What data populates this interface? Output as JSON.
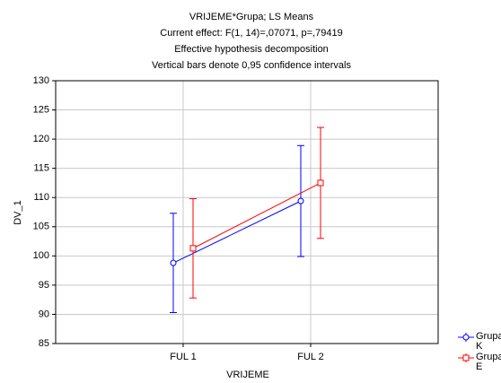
{
  "chart_data": {
    "type": "line",
    "title": "VRIJEME*Grupa; LS Means",
    "subtitle": "Current effect: F(1, 14)=,07071, p=,79419",
    "annotations": [
      "Effective hypothesis decomposition",
      "Vertical bars denote 0,95 confidence intervals"
    ],
    "x_label": "VRIJEME",
    "y_label": "DV_1",
    "categories": [
      "FUL 1",
      "FUL 2"
    ],
    "series": [
      {
        "name": "Grupa K",
        "color": "#0000ff",
        "marker": "circle",
        "values": [
          98.8,
          109.4
        ],
        "errors": [
          8.5,
          9.5
        ]
      },
      {
        "name": "Grupa E",
        "color": "#ff0000",
        "marker": "square",
        "values": [
          101.3,
          112.5
        ],
        "errors": [
          8.5,
          9.5
        ]
      }
    ],
    "ylim": [
      85,
      130
    ],
    "yticks": [
      85,
      90,
      95,
      100,
      105,
      110,
      115,
      120,
      125,
      130
    ],
    "grid": true,
    "legend": "right"
  }
}
